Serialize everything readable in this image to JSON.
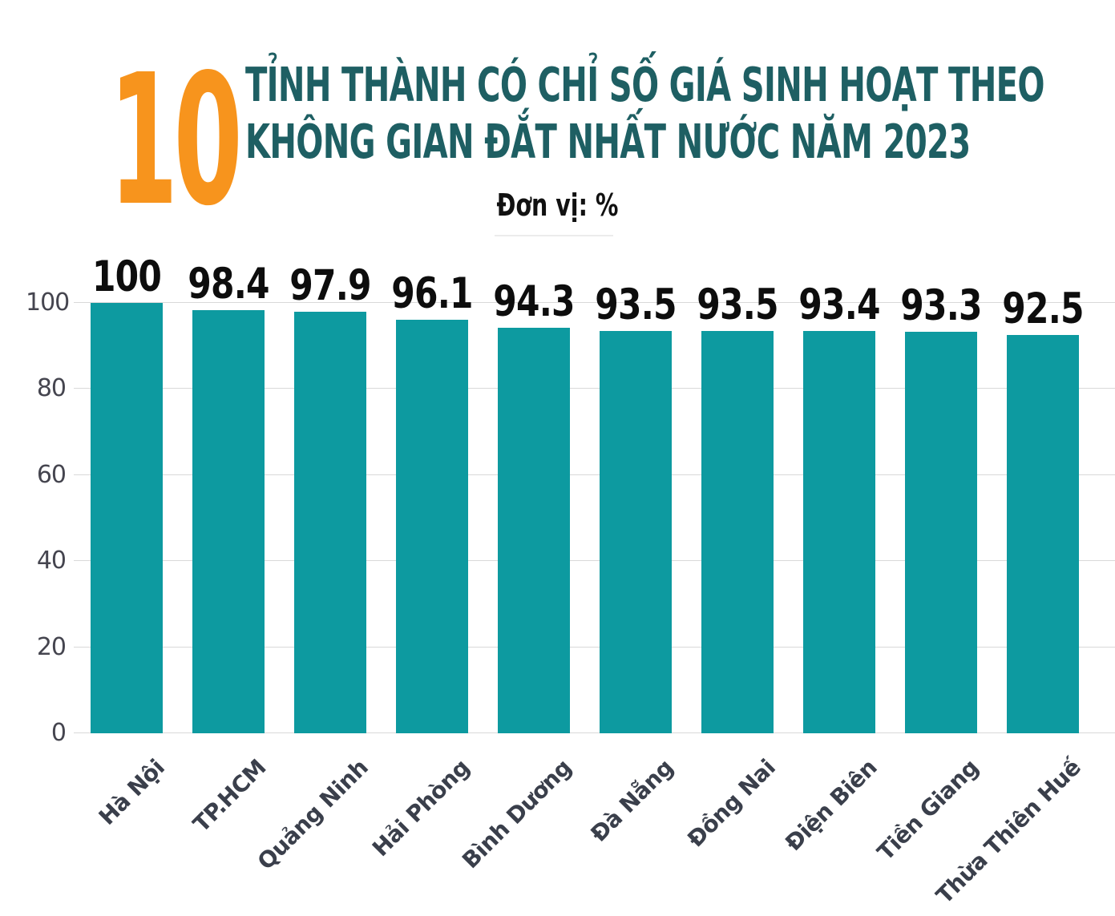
{
  "header": {
    "big_number": "10",
    "title_line1": "TỈNH THÀNH CÓ CHỈ SỐ GIÁ SINH HOẠT THEO",
    "title_line2": "KHÔNG GIAN ĐẮT NHẤT NƯỚC NĂM 2023",
    "unit_label": "Đơn vị: %"
  },
  "colors": {
    "accent_orange": "#F7941D",
    "title_teal": "#1E5F63",
    "bar_teal": "#0D9AA0",
    "gridline_gray": "#d9d9d9",
    "tick_gray": "#45454f",
    "category_label": "#3a3f4b",
    "value_label": "#0d0d0d",
    "background": "#ffffff"
  },
  "chart_data": {
    "type": "bar",
    "title": "10 tỉnh thành có chỉ số giá sinh hoạt theo không gian đắt nhất nước năm 2023",
    "subtitle_unit": "Đơn vị: %",
    "categories": [
      "Hà Nội",
      "TP.HCM",
      "Quảng Ninh",
      "Hải Phòng",
      "Bình Dương",
      "Đà Nẵng",
      "Đồng Nai",
      "Điện Biên",
      "Tiền Giang",
      "Thừa Thiên Huế"
    ],
    "values": [
      100,
      98.4,
      97.9,
      96.1,
      94.3,
      93.5,
      93.5,
      93.4,
      93.3,
      92.5
    ],
    "value_labels": [
      "100",
      "98.4",
      "97.9",
      "96.1",
      "94.3",
      "93.5",
      "93.5",
      "93.4",
      "93.3",
      "92.5"
    ],
    "xlabel": "",
    "ylabel": "",
    "ylim": [
      0,
      100
    ],
    "yticks": [
      0,
      20,
      40,
      60,
      80,
      100
    ],
    "grid": "horizontal",
    "legend": "none",
    "bar_color": "#0D9AA0",
    "category_rotation_deg": -45
  }
}
